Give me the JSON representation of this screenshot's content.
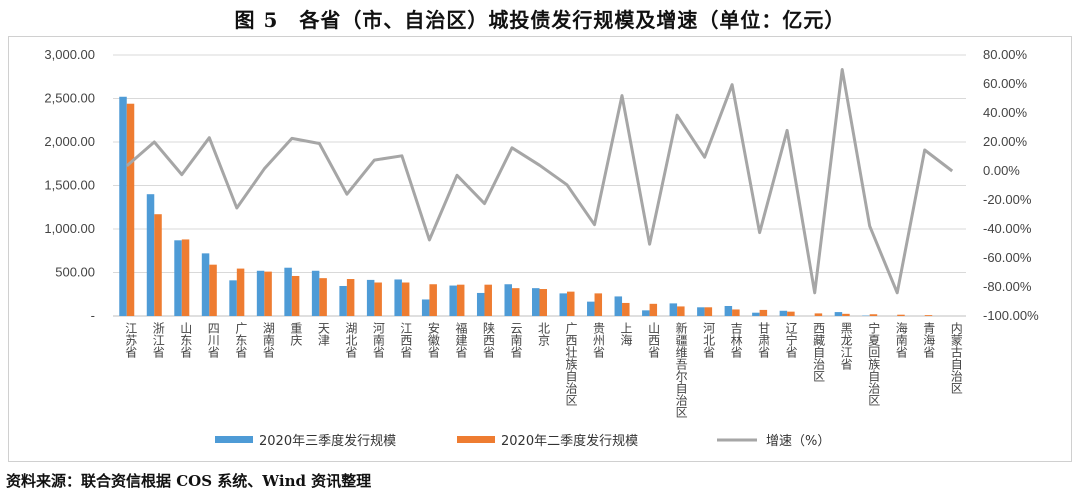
{
  "page": {
    "title": "图 5　各省（市、自治区）城投债发行规模及增速（单位：亿元）",
    "source": "资料来源：联合资信根据 COS 系统、Wind 资讯整理"
  },
  "colors": {
    "series1": "#4e9bd6",
    "series2": "#ee7c31",
    "growth": "#a6a6a6",
    "grid": "#d9d9d9",
    "axis": "#bfbfbf"
  },
  "chart_data": {
    "type": "bar",
    "categories": [
      "江苏省",
      "浙江省",
      "山东省",
      "四川省",
      "广东省",
      "湖南省",
      "重庆",
      "天津",
      "湖北省",
      "河南省",
      "江西省",
      "安徽省",
      "福建省",
      "陕西省",
      "云南省",
      "北京",
      "广西壮族自治区",
      "贵州省",
      "上海",
      "山西省",
      "新疆维吾尔自治区",
      "河北省",
      "吉林省",
      "甘肃省",
      "辽宁省",
      "西藏自治区",
      "黑龙江省",
      "宁夏回族自治区",
      "海南省",
      "青海省",
      "内蒙古自治区"
    ],
    "series": [
      {
        "name": "2020年三季度发行规模",
        "axis": "left",
        "kind": "bar",
        "values": [
          2520,
          1400,
          870,
          720,
          410,
          520,
          555,
          520,
          345,
          415,
          420,
          190,
          350,
          265,
          365,
          320,
          260,
          165,
          225,
          65,
          145,
          100,
          115,
          38,
          60,
          0,
          45,
          5,
          0,
          0,
          0
        ]
      },
      {
        "name": "2020年二季度发行规模",
        "axis": "left",
        "kind": "bar",
        "values": [
          2440,
          1170,
          880,
          590,
          545,
          510,
          460,
          435,
          425,
          385,
          385,
          365,
          360,
          360,
          320,
          310,
          280,
          260,
          150,
          140,
          110,
          100,
          75,
          70,
          50,
          30,
          25,
          20,
          15,
          10,
          0
        ]
      },
      {
        "name": "增速（%）",
        "axis": "right",
        "kind": "line",
        "values": [
          3.5,
          20,
          -2.5,
          23,
          -25.5,
          1.5,
          22.5,
          19,
          -16,
          7.5,
          10.5,
          -47.5,
          -3,
          -22.5,
          16,
          4,
          -9.5,
          -37,
          52,
          -50.5,
          38.5,
          9.5,
          59.5,
          -42.5,
          28,
          -84,
          70,
          -38,
          -84,
          14.5,
          0
        ]
      }
    ],
    "y_left": {
      "min": 0,
      "max": 3000,
      "ticks": [
        "-",
        "500.00",
        "1,000.00",
        "1,500.00",
        "2,000.00",
        "2,500.00",
        "3,000.00"
      ]
    },
    "y_right": {
      "min": -100,
      "max": 80,
      "ticks": [
        "-100.00%",
        "-80.00%",
        "-60.00%",
        "-40.00%",
        "-20.00%",
        "0.00%",
        "20.00%",
        "40.00%",
        "60.00%",
        "80.00%"
      ]
    },
    "grid": true,
    "legend_position": "bottom"
  }
}
